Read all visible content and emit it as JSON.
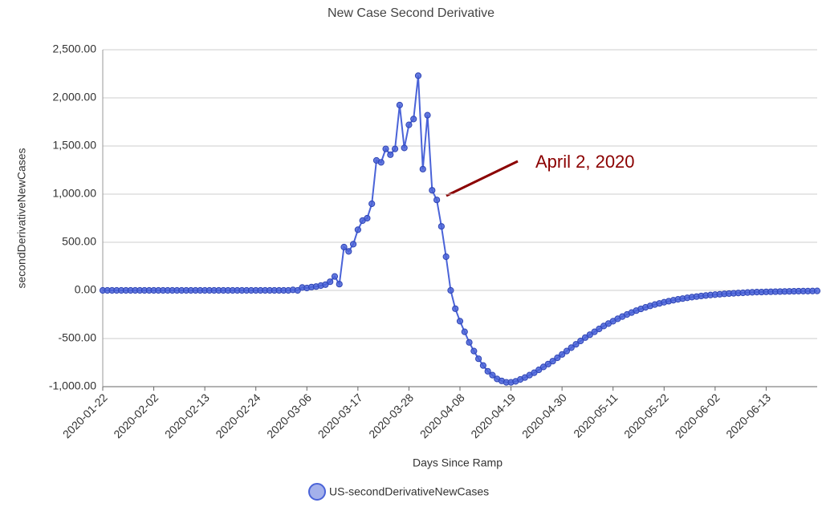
{
  "chart_data": {
    "type": "line",
    "title": "New Case Second Derivative",
    "x_label": "Days Since Ramp",
    "y_label": "secondDerivativeNewCases",
    "annotations": [
      {
        "text": "April 2, 2020",
        "color": "#8b0000"
      }
    ],
    "legend": "bottom",
    "grid": true,
    "x": [
      "2020-01-22",
      "2020-01-23",
      "2020-01-24",
      "2020-01-25",
      "2020-01-26",
      "2020-01-27",
      "2020-01-28",
      "2020-01-29",
      "2020-01-30",
      "2020-01-31",
      "2020-02-01",
      "2020-02-02",
      "2020-02-03",
      "2020-02-04",
      "2020-02-05",
      "2020-02-06",
      "2020-02-07",
      "2020-02-08",
      "2020-02-09",
      "2020-02-10",
      "2020-02-11",
      "2020-02-12",
      "2020-02-13",
      "2020-02-14",
      "2020-02-15",
      "2020-02-16",
      "2020-02-17",
      "2020-02-18",
      "2020-02-19",
      "2020-02-20",
      "2020-02-21",
      "2020-02-22",
      "2020-02-23",
      "2020-02-24",
      "2020-02-25",
      "2020-02-26",
      "2020-02-27",
      "2020-02-28",
      "2020-02-29",
      "2020-03-01",
      "2020-03-02",
      "2020-03-03",
      "2020-03-04",
      "2020-03-05",
      "2020-03-06",
      "2020-03-07",
      "2020-03-08",
      "2020-03-09",
      "2020-03-10",
      "2020-03-11",
      "2020-03-12",
      "2020-03-13",
      "2020-03-14",
      "2020-03-15",
      "2020-03-16",
      "2020-03-17",
      "2020-03-18",
      "2020-03-19",
      "2020-03-20",
      "2020-03-21",
      "2020-03-22",
      "2020-03-23",
      "2020-03-24",
      "2020-03-25",
      "2020-03-26",
      "2020-03-27",
      "2020-03-28",
      "2020-03-29",
      "2020-03-30",
      "2020-03-31",
      "2020-04-01",
      "2020-04-02",
      "2020-04-03",
      "2020-04-04",
      "2020-04-05",
      "2020-04-06",
      "2020-04-07",
      "2020-04-08",
      "2020-04-09",
      "2020-04-10",
      "2020-04-11",
      "2020-04-12",
      "2020-04-13",
      "2020-04-14",
      "2020-04-15",
      "2020-04-16",
      "2020-04-17",
      "2020-04-18",
      "2020-04-19",
      "2020-04-20",
      "2020-04-21",
      "2020-04-22",
      "2020-04-23",
      "2020-04-24",
      "2020-04-25",
      "2020-04-26",
      "2020-04-27",
      "2020-04-28",
      "2020-04-29",
      "2020-04-30",
      "2020-05-01",
      "2020-05-02",
      "2020-05-03",
      "2020-05-04",
      "2020-05-05",
      "2020-05-06",
      "2020-05-07",
      "2020-05-08",
      "2020-05-09",
      "2020-05-10",
      "2020-05-11",
      "2020-05-12",
      "2020-05-13",
      "2020-05-14",
      "2020-05-15",
      "2020-05-16",
      "2020-05-17",
      "2020-05-18",
      "2020-05-19",
      "2020-05-20",
      "2020-05-21",
      "2020-05-22",
      "2020-05-23",
      "2020-05-24",
      "2020-05-25",
      "2020-05-26",
      "2020-05-27",
      "2020-05-28",
      "2020-05-29",
      "2020-05-30",
      "2020-05-31",
      "2020-06-01",
      "2020-06-02",
      "2020-06-03",
      "2020-06-04",
      "2020-06-05",
      "2020-06-06",
      "2020-06-07",
      "2020-06-08",
      "2020-06-09",
      "2020-06-10",
      "2020-06-11",
      "2020-06-12",
      "2020-06-13",
      "2020-06-14",
      "2020-06-15",
      "2020-06-16",
      "2020-06-17",
      "2020-06-18",
      "2020-06-19",
      "2020-06-20",
      "2020-06-21",
      "2020-06-22",
      "2020-06-23",
      "2020-06-24"
    ],
    "series": [
      {
        "name": "US-secondDerivativeNewCases",
        "color": "#4a63d8",
        "values": [
          0,
          0,
          0,
          0,
          0,
          0,
          0,
          0,
          0,
          0,
          0,
          0,
          0,
          0,
          0,
          0,
          0,
          0,
          0,
          0,
          0,
          0,
          0,
          0,
          0,
          0,
          0,
          0,
          0,
          0,
          0,
          0,
          0,
          0,
          0,
          0,
          0,
          0,
          0,
          0,
          0,
          5,
          0,
          30,
          25,
          35,
          40,
          50,
          60,
          90,
          145,
          65,
          450,
          405,
          480,
          630,
          725,
          750,
          900,
          1350,
          1330,
          1470,
          1410,
          1470,
          1925,
          1480,
          1720,
          1780,
          2230,
          1260,
          1820,
          1040,
          940,
          665,
          350,
          0,
          -190,
          -320,
          -430,
          -540,
          -630,
          -710,
          -780,
          -840,
          -880,
          -920,
          -940,
          -955,
          -955,
          -945,
          -925,
          -905,
          -880,
          -855,
          -825,
          -795,
          -765,
          -735,
          -700,
          -665,
          -630,
          -595,
          -560,
          -525,
          -490,
          -460,
          -430,
          -400,
          -370,
          -345,
          -320,
          -295,
          -272,
          -250,
          -230,
          -210,
          -192,
          -176,
          -161,
          -147,
          -135,
          -123,
          -112,
          -102,
          -93,
          -85,
          -77,
          -70,
          -64,
          -58,
          -53,
          -48,
          -44,
          -40,
          -36,
          -33,
          -30,
          -27,
          -25,
          -22,
          -20,
          -18,
          -17,
          -15,
          -14,
          -13,
          -12,
          -11,
          -10,
          -9,
          -8,
          -7,
          -7,
          -6,
          -5
        ]
      }
    ],
    "xlim": [
      "2020-01-22",
      "2020-06-24"
    ],
    "xticks": [
      "2020-01-22",
      "2020-02-02",
      "2020-02-13",
      "2020-02-24",
      "2020-03-06",
      "2020-03-17",
      "2020-03-28",
      "2020-04-08",
      "2020-04-19",
      "2020-04-30",
      "2020-05-11",
      "2020-05-22",
      "2020-06-02",
      "2020-06-13"
    ],
    "ylim": [
      -1000,
      2500
    ],
    "yticks": [
      {
        "value": -1000,
        "label": "-1,000.00"
      },
      {
        "value": -500,
        "label": "-500.00"
      },
      {
        "value": 0,
        "label": "0.00"
      },
      {
        "value": 500,
        "label": "500.00"
      },
      {
        "value": 1000,
        "label": "1,000.00"
      },
      {
        "value": 1500,
        "label": "1,500.00"
      },
      {
        "value": 2000,
        "label": "2,000.00"
      },
      {
        "value": 2500,
        "label": "2,500.00"
      }
    ]
  }
}
